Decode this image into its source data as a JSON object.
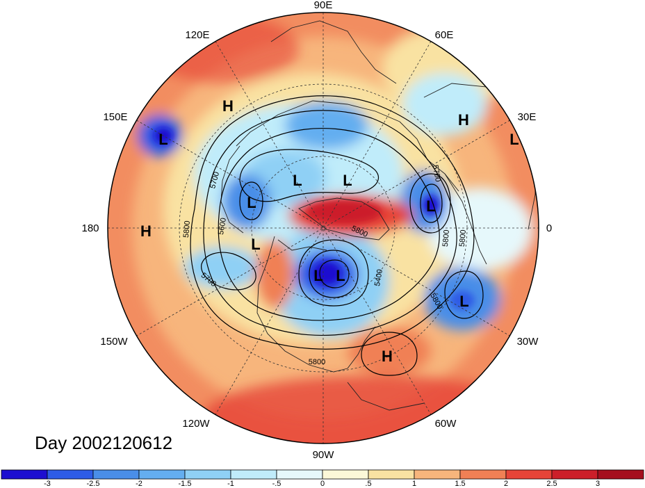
{
  "date_label": "Day 2002120612",
  "longitude_labels": [
    {
      "id": "90e",
      "text": "90E"
    },
    {
      "id": "120e",
      "text": "120E"
    },
    {
      "id": "60e",
      "text": "60E"
    },
    {
      "id": "150e",
      "text": "150E"
    },
    {
      "id": "30e",
      "text": "30E"
    },
    {
      "id": "180",
      "text": "180"
    },
    {
      "id": "0",
      "text": "0"
    },
    {
      "id": "150w",
      "text": "150W"
    },
    {
      "id": "30w",
      "text": "30W"
    },
    {
      "id": "120w",
      "text": "120W"
    },
    {
      "id": "60w",
      "text": "60W"
    },
    {
      "id": "90w",
      "text": "90W"
    }
  ],
  "pressure_centers": [
    "H",
    "L",
    "H",
    "L",
    "L",
    "L",
    "L",
    "L",
    "H",
    "L",
    "L",
    "L",
    "H",
    "L"
  ],
  "contour_labels": [
    "5700",
    "5800",
    "5600",
    "5700",
    "5800",
    "5800",
    "5700",
    "5800",
    "5400",
    "5800",
    "5800"
  ],
  "colorbar": {
    "ticks": [
      "-3",
      "-2.5",
      "-2",
      "-1.5",
      "-1",
      "-.5",
      "0",
      ".5",
      "1",
      "1.5",
      "2",
      "2.5",
      "3"
    ],
    "colors": [
      "#1d0fd0",
      "#2e5ce6",
      "#4a8ee8",
      "#64aef0",
      "#8fd0f5",
      "#c0ecfa",
      "#e6f8fb",
      "#fcf8d8",
      "#f9e2a2",
      "#f7b57c",
      "#f08055",
      "#e64438",
      "#cc1f2a",
      "#a50f1e"
    ]
  }
}
